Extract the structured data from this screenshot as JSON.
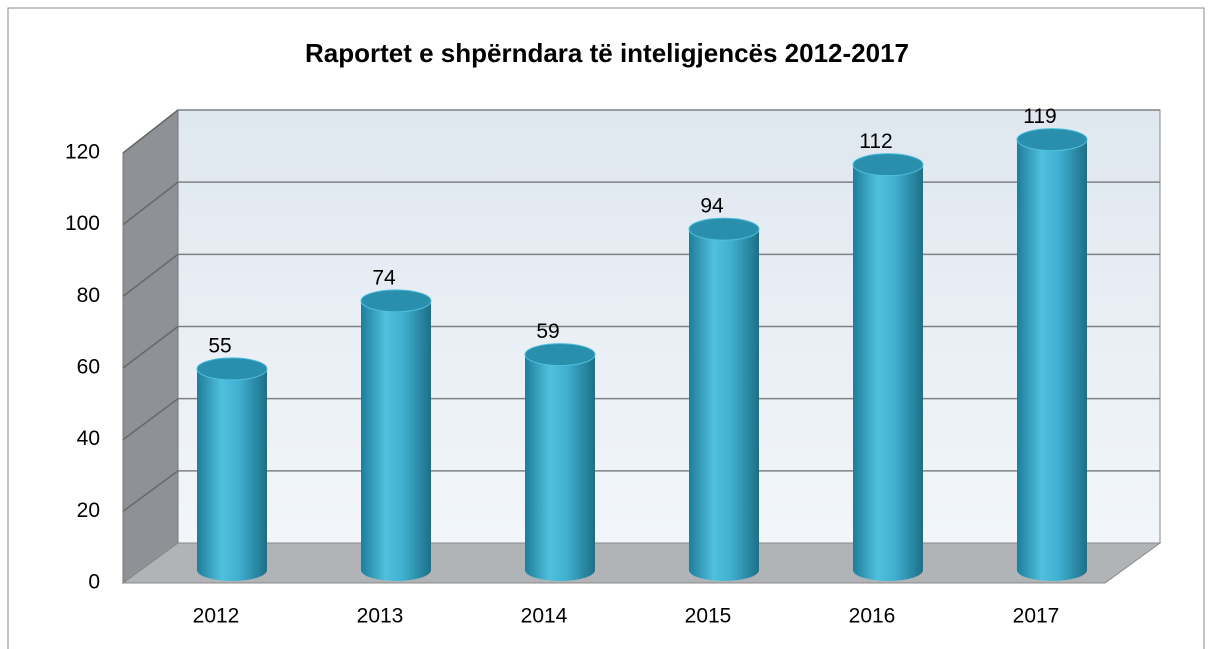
{
  "chart_data": {
    "type": "bar",
    "title": "Raportet e shpërndara të inteligjencës 2012-2017",
    "categories": [
      "2012",
      "2013",
      "2014",
      "2015",
      "2016",
      "2017"
    ],
    "values": [
      55,
      74,
      59,
      94,
      112,
      119
    ],
    "color": "#3fb0cf",
    "ylim": [
      0,
      120
    ],
    "yticks": [
      0,
      20,
      40,
      60,
      80,
      100,
      120
    ],
    "grid": true
  }
}
